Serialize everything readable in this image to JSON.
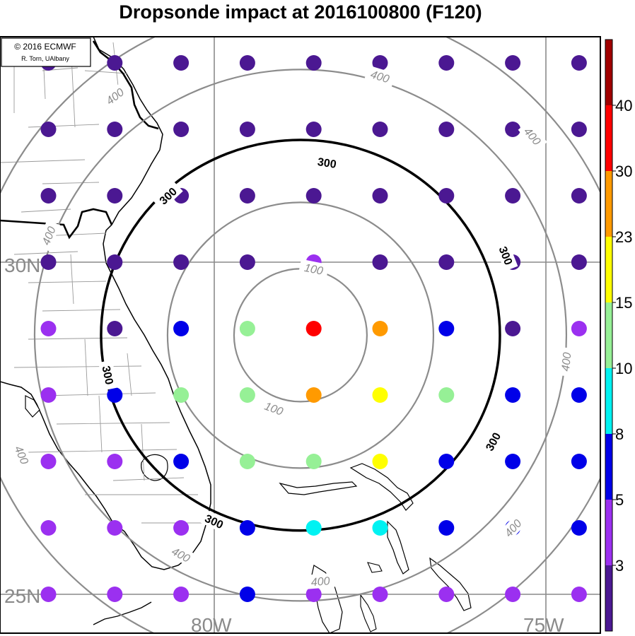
{
  "title": "Dropsonde impact at 2016100800 (F120)",
  "credit": {
    "line1": "© 2016 ECMWF",
    "line2": "R. Torn, UAlbany"
  },
  "map": {
    "lat_labels": [
      "30N",
      "25N"
    ],
    "lon_labels": [
      "80W",
      "75W"
    ],
    "storm_center": {
      "lon": -78.7,
      "lat": 28.9
    }
  },
  "contours": {
    "color_gray": "#8c8c8c",
    "color_bold": "#000000",
    "levels": [
      {
        "value": 100,
        "label": "100",
        "style": "gray",
        "label_positions": [
          {
            "lon": -78.5,
            "lat": 29.9
          },
          {
            "lon": -79.1,
            "lat": 27.8
          }
        ]
      },
      {
        "value": 200,
        "label": "",
        "style": "gray",
        "label_positions": []
      },
      {
        "value": 300,
        "label": "300",
        "style": "bold",
        "label_positions": [
          {
            "lon": -78.3,
            "lat": 31.5
          },
          {
            "lon": -80.7,
            "lat": 31.0
          },
          {
            "lon": -75.6,
            "lat": 30.1
          },
          {
            "lon": -81.6,
            "lat": 28.3
          },
          {
            "lon": -75.8,
            "lat": 27.3
          },
          {
            "lon": -80.0,
            "lat": 26.1
          }
        ]
      },
      {
        "value": 400,
        "label": "400",
        "style": "gray",
        "label_positions": [
          {
            "lon": -77.5,
            "lat": 32.8
          },
          {
            "lon": -81.5,
            "lat": 32.5
          },
          {
            "lon": -75.2,
            "lat": 31.9
          },
          {
            "lon": -82.5,
            "lat": 30.4
          },
          {
            "lon": -74.7,
            "lat": 28.5
          },
          {
            "lon": -82.9,
            "lat": 27.1
          },
          {
            "lon": -75.5,
            "lat": 26.0
          },
          {
            "lon": -80.5,
            "lat": 25.6
          },
          {
            "lon": -78.4,
            "lat": 25.2
          }
        ]
      },
      {
        "value": 500,
        "label": "",
        "style": "gray",
        "label_positions": []
      }
    ]
  },
  "colorbar": {
    "tick_labels": [
      "3",
      "5",
      "8",
      "10",
      "15",
      "23",
      "30",
      "40"
    ],
    "colors": [
      "#4b1892",
      "#9b30f0",
      "#0000e8",
      "#00f2f2",
      "#96f096",
      "#ffff00",
      "#ff9a00",
      "#ff0000",
      "#a00000"
    ]
  },
  "legend_key": {
    "1": "#4b1892",
    "2": "#9b30f0",
    "3": "#0000e8",
    "4": "#00f2f2",
    "5": "#96f096",
    "6": "#ffff00",
    "7": "#ff9a00",
    "8": "#ff0000"
  },
  "dropsondes": {
    "lons": [
      -82.5,
      -81.5,
      -80.5,
      -79.5,
      -78.5,
      -77.5,
      -76.5,
      -75.5,
      -74.5
    ],
    "lats": [
      33.0,
      32.0,
      31.0,
      30.0,
      29.0,
      28.0,
      27.0,
      26.0,
      25.0
    ],
    "impact_class": [
      [
        1,
        1,
        1,
        1,
        1,
        1,
        1,
        1,
        1
      ],
      [
        1,
        1,
        1,
        1,
        1,
        1,
        1,
        1,
        1
      ],
      [
        1,
        1,
        1,
        1,
        1,
        1,
        1,
        1,
        1
      ],
      [
        1,
        1,
        1,
        1,
        2,
        1,
        1,
        1,
        1
      ],
      [
        2,
        1,
        3,
        5,
        8,
        7,
        3,
        1,
        2
      ],
      [
        2,
        3,
        5,
        5,
        7,
        6,
        5,
        3,
        3
      ],
      [
        2,
        2,
        3,
        5,
        5,
        6,
        3,
        3,
        3
      ],
      [
        2,
        2,
        2,
        3,
        4,
        4,
        3,
        3,
        3
      ],
      [
        2,
        2,
        2,
        3,
        2,
        2,
        2,
        2,
        2
      ]
    ]
  }
}
